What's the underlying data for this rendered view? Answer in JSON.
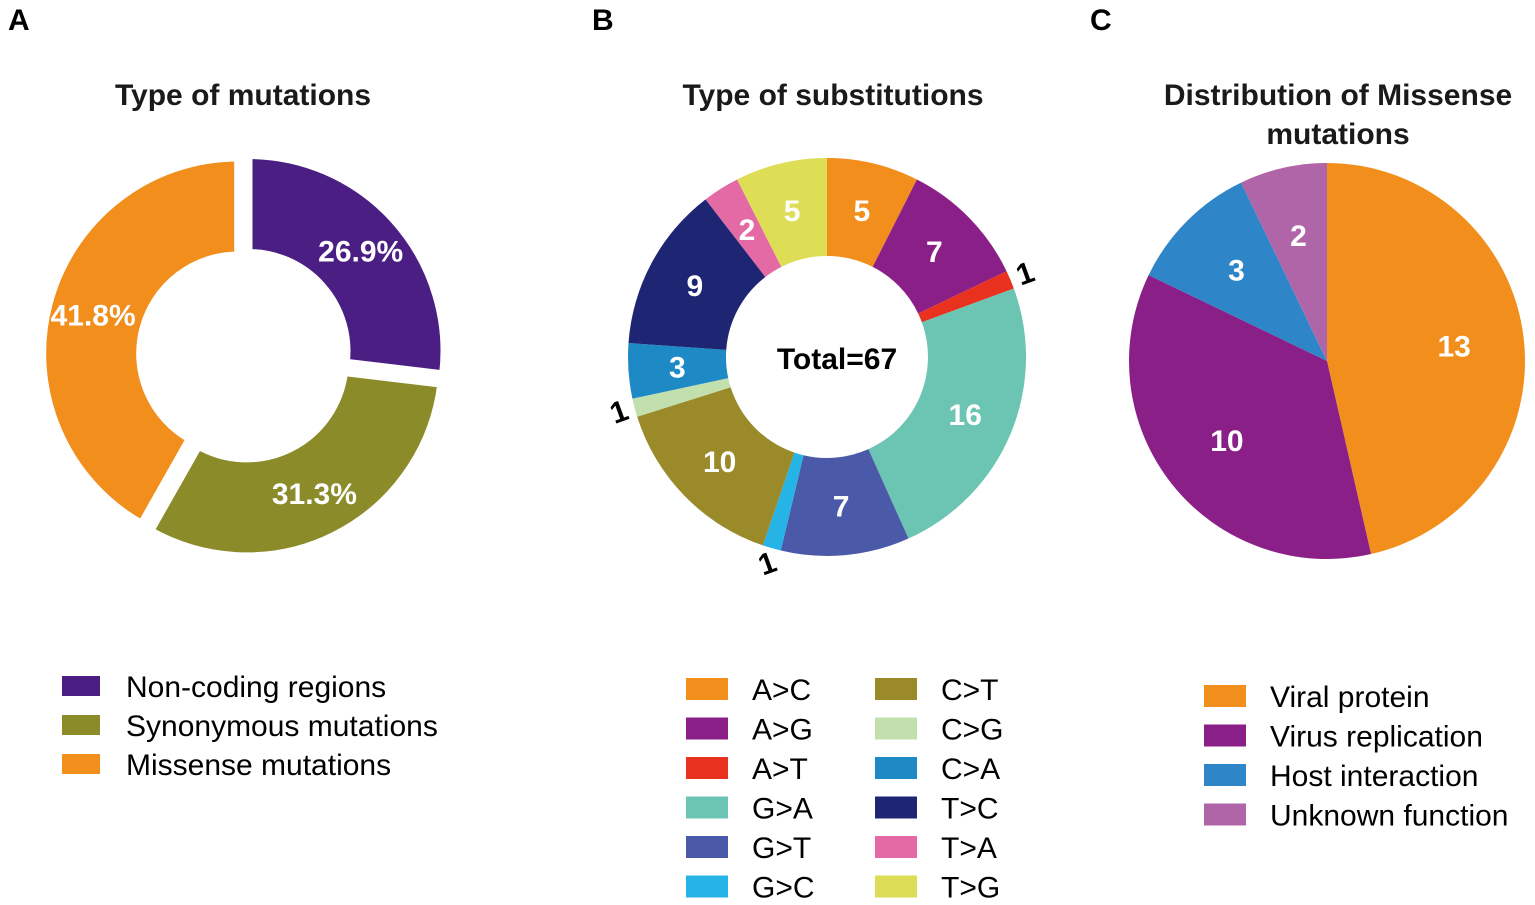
{
  "panel_letters": [
    "A",
    "B",
    "C"
  ],
  "chart_data": [
    {
      "type": "pie",
      "variant": "donut",
      "panel": "A",
      "title": "Type of mutations",
      "unit": "%",
      "slices": [
        {
          "name": "Non-coding regions",
          "value": 26.9,
          "label": "26.9%",
          "color": "#4b1e84"
        },
        {
          "name": "Synonymous mutations",
          "value": 31.3,
          "label": "31.3%",
          "color": "#8b8b2a"
        },
        {
          "name": "Missense mutations",
          "value": 41.8,
          "label": "41.8%",
          "color": "#f28e1c"
        }
      ],
      "legend": [
        "Non-coding regions",
        "Synonymous mutations",
        "Missense mutations"
      ],
      "legend_position": "bottom"
    },
    {
      "type": "pie",
      "variant": "donut",
      "panel": "B",
      "title": "Type of substitutions",
      "center_label": "Total=67",
      "slices": [
        {
          "name": "A>C",
          "value": 5,
          "label": "5",
          "color": "#f28e1c"
        },
        {
          "name": "A>G",
          "value": 7,
          "label": "7",
          "color": "#8b1f88"
        },
        {
          "name": "A>T",
          "value": 1,
          "label": "1",
          "color": "#e8321e"
        },
        {
          "name": "G>A",
          "value": 16,
          "label": "16",
          "color": "#6cc4b3"
        },
        {
          "name": "G>T",
          "value": 7,
          "label": "7",
          "color": "#4b5aa8"
        },
        {
          "name": "G>C",
          "value": 1,
          "label": "1",
          "color": "#26b3e6"
        },
        {
          "name": "C>T",
          "value": 10,
          "label": "10",
          "color": "#9a8a2a"
        },
        {
          "name": "C>G",
          "value": 1,
          "label": "1",
          "color": "#c2e0ad"
        },
        {
          "name": "C>A",
          "value": 3,
          "label": "3",
          "color": "#1d8ac6"
        },
        {
          "name": "T>C",
          "value": 9,
          "label": "9",
          "color": "#1e2674"
        },
        {
          "name": "T>A",
          "value": 2,
          "label": "2",
          "color": "#e36aa4"
        },
        {
          "name": "T>G",
          "value": 5,
          "label": "5",
          "color": "#dede56"
        }
      ],
      "legend": [
        "A>C",
        "A>G",
        "A>T",
        "G>A",
        "G>T",
        "G>C",
        "C>T",
        "C>G",
        "C>A",
        "T>C",
        "T>A",
        "T>G"
      ],
      "legend_position": "bottom"
    },
    {
      "type": "pie",
      "panel": "C",
      "title": "Distribution of Missense mutations",
      "title_lines": [
        "Distribution of Missense",
        "mutations"
      ],
      "slices": [
        {
          "name": "Viral protein",
          "value": 13,
          "label": "13",
          "color": "#f28e1c"
        },
        {
          "name": "Virus replication",
          "value": 10,
          "label": "10",
          "color": "#8b1f88"
        },
        {
          "name": "Host interaction",
          "value": 3,
          "label": "3",
          "color": "#2e86c9"
        },
        {
          "name": "Unknown function",
          "value": 2,
          "label": "2",
          "color": "#b065a9"
        }
      ],
      "legend": [
        "Viral protein",
        "Virus replication",
        "Host interaction",
        "Unknown function"
      ],
      "legend_position": "bottom"
    }
  ]
}
